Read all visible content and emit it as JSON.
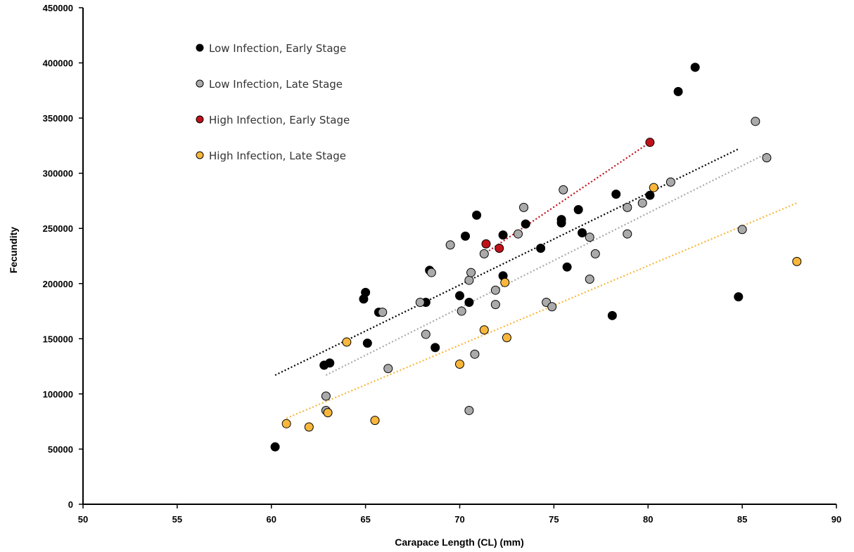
{
  "chart_data": {
    "type": "scatter",
    "title": "",
    "xlabel": "Carapace Length (CL) (mm)",
    "ylabel": "Fecundity",
    "xlim": [
      50,
      90
    ],
    "ylim": [
      0,
      450000
    ],
    "x_ticks": [
      "50",
      "55",
      "60",
      "65",
      "70",
      "75",
      "80",
      "85",
      "90"
    ],
    "y_ticks": [
      "0",
      "50000",
      "100000",
      "150000",
      "200000",
      "250000",
      "300000",
      "350000",
      "400000",
      "450000"
    ],
    "grid": false,
    "legend_position": "top-left",
    "series": [
      {
        "name": "Low Infection, Early Stage",
        "color": "#000000",
        "points": [
          [
            60.2,
            52000
          ],
          [
            62.8,
            126000
          ],
          [
            63.1,
            128000
          ],
          [
            64.9,
            186000
          ],
          [
            65.0,
            192000
          ],
          [
            65.1,
            146000
          ],
          [
            65.7,
            174000
          ],
          [
            68.2,
            183000
          ],
          [
            68.4,
            212000
          ],
          [
            68.7,
            142000
          ],
          [
            70.0,
            189000
          ],
          [
            70.3,
            243000
          ],
          [
            70.5,
            183000
          ],
          [
            70.9,
            262000
          ],
          [
            72.3,
            244000
          ],
          [
            72.3,
            207000
          ],
          [
            73.5,
            254000
          ],
          [
            74.3,
            232000
          ],
          [
            75.4,
            258000
          ],
          [
            75.4,
            255000
          ],
          [
            75.7,
            215000
          ],
          [
            76.3,
            267000
          ],
          [
            76.5,
            246000
          ],
          [
            78.1,
            171000
          ],
          [
            78.3,
            281000
          ],
          [
            80.1,
            280000
          ],
          [
            81.6,
            374000
          ],
          [
            82.5,
            396000
          ],
          [
            84.8,
            188000
          ]
        ],
        "trend": [
          [
            60.2,
            117000
          ],
          [
            84.8,
            322000
          ]
        ]
      },
      {
        "name": "Low Infection, Late Stage",
        "color": "#aaaaaa",
        "points": [
          [
            62.9,
            98000
          ],
          [
            62.9,
            85000
          ],
          [
            65.9,
            174000
          ],
          [
            66.2,
            123000
          ],
          [
            67.9,
            183000
          ],
          [
            68.2,
            154000
          ],
          [
            68.5,
            210000
          ],
          [
            69.5,
            235000
          ],
          [
            70.1,
            175000
          ],
          [
            70.5,
            203000
          ],
          [
            70.6,
            210000
          ],
          [
            70.5,
            85000
          ],
          [
            70.8,
            136000
          ],
          [
            71.3,
            227000
          ],
          [
            71.9,
            194000
          ],
          [
            71.9,
            181000
          ],
          [
            73.1,
            245000
          ],
          [
            73.4,
            269000
          ],
          [
            74.6,
            183000
          ],
          [
            74.9,
            179000
          ],
          [
            75.5,
            285000
          ],
          [
            76.9,
            242000
          ],
          [
            76.9,
            204000
          ],
          [
            77.2,
            227000
          ],
          [
            78.9,
            269000
          ],
          [
            78.9,
            245000
          ],
          [
            79.7,
            273000
          ],
          [
            81.2,
            292000
          ],
          [
            85.0,
            249000
          ],
          [
            85.7,
            347000
          ],
          [
            86.3,
            314000
          ]
        ],
        "trend": [
          [
            62.9,
            117000
          ],
          [
            86.3,
            318000
          ]
        ]
      },
      {
        "name": "High Infection, Early Stage",
        "color": "#c0111a",
        "points": [
          [
            71.4,
            236000
          ],
          [
            72.1,
            232000
          ],
          [
            80.1,
            328000
          ]
        ],
        "trend": [
          [
            71.4,
            228000
          ],
          [
            80.1,
            328000
          ]
        ]
      },
      {
        "name": "High Infection, Late Stage",
        "color": "#f8b73c",
        "points": [
          [
            60.8,
            73000
          ],
          [
            62.0,
            70000
          ],
          [
            63.0,
            83000
          ],
          [
            64.0,
            147000
          ],
          [
            65.5,
            76000
          ],
          [
            70.0,
            127000
          ],
          [
            71.3,
            158000
          ],
          [
            72.4,
            201000
          ],
          [
            72.5,
            151000
          ],
          [
            80.3,
            287000
          ],
          [
            87.9,
            220000
          ]
        ],
        "trend": [
          [
            60.8,
            78000
          ],
          [
            87.9,
            273000
          ]
        ]
      }
    ]
  }
}
